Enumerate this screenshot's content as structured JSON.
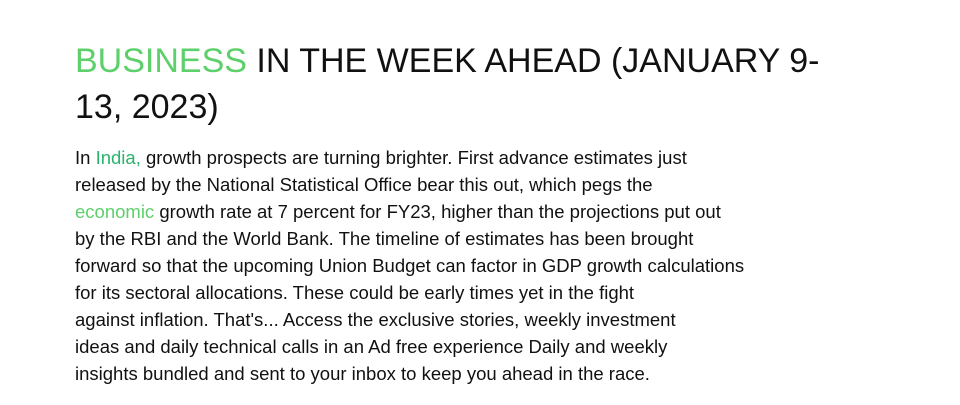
{
  "article": {
    "headline_kicker": "BUSINESS",
    "headline_rest": " IN THE WEEK AHEAD (JANUARY 9-13, 2023)",
    "body": {
      "l1_pre": "In ",
      "l1_link": "India,",
      "l1_post": " growth prospects are turning brighter. First advance estimates just",
      "l2": "released by the National Statistical Office bear this out, which pegs the",
      "l3_link": "economic",
      "l3_post": " growth rate at 7 percent for FY23, higher than the projections put out",
      "l4": "by the RBI and the World Bank. The timeline of estimates has been brought",
      "l5": "forward so that the upcoming Union Budget can factor in GDP growth calculations",
      "l6": "for its sectoral allocations. These could be early times yet in the fight",
      "l7": "against inflation. That's... Access the exclusive stories, weekly investment",
      "l8": "ideas and daily technical calls in an Ad free experience Daily and weekly",
      "l9": "insights bundled and sent to your inbox to keep you ahead in the race."
    }
  },
  "colors": {
    "kicker": "#5ed06b",
    "link_india": "#2ab36d",
    "link_economic": "#5ed06b",
    "text": "#111111"
  }
}
